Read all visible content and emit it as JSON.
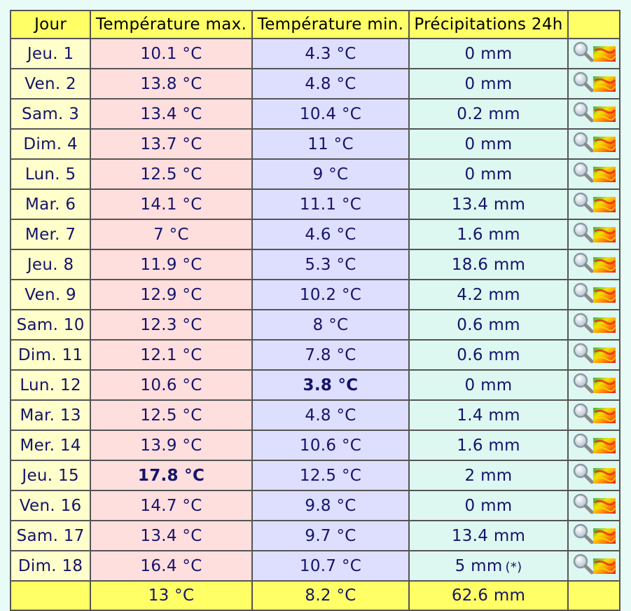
{
  "headers": {
    "day": "Jour",
    "tmax": "Température max.",
    "tmin": "Température min.",
    "prec": "Précipitations 24h",
    "icon": ""
  },
  "rows": [
    {
      "day": "Jeu. 1",
      "tmax": "10.1 °C",
      "tmin": "4.3 °C",
      "prec": "0 mm"
    },
    {
      "day": "Ven. 2",
      "tmax": "13.8 °C",
      "tmin": "4.8 °C",
      "prec": "0 mm"
    },
    {
      "day": "Sam. 3",
      "tmax": "13.4 °C",
      "tmin": "10.4 °C",
      "prec": "0.2 mm"
    },
    {
      "day": "Dim. 4",
      "tmax": "13.7 °C",
      "tmin": "11 °C",
      "prec": "0 mm"
    },
    {
      "day": "Lun. 5",
      "tmax": "12.5 °C",
      "tmin": "9 °C",
      "prec": "0 mm"
    },
    {
      "day": "Mar. 6",
      "tmax": "14.1 °C",
      "tmin": "11.1 °C",
      "prec": "13.4 mm"
    },
    {
      "day": "Mer. 7",
      "tmax": "7 °C",
      "tmin": "4.6 °C",
      "prec": "1.6 mm"
    },
    {
      "day": "Jeu. 8",
      "tmax": "11.9 °C",
      "tmin": "5.3 °C",
      "prec": "18.6 mm"
    },
    {
      "day": "Ven. 9",
      "tmax": "12.9 °C",
      "tmin": "10.2 °C",
      "prec": "4.2 mm"
    },
    {
      "day": "Sam. 10",
      "tmax": "12.3 °C",
      "tmin": "8 °C",
      "prec": "0.6 mm"
    },
    {
      "day": "Dim. 11",
      "tmax": "12.1 °C",
      "tmin": "7.8 °C",
      "prec": "0.6 mm"
    },
    {
      "day": "Lun. 12",
      "tmax": "10.6 °C",
      "tmin": "3.8 °C",
      "prec": "0 mm",
      "tmin_style": "bold-black"
    },
    {
      "day": "Mar. 13",
      "tmax": "12.5 °C",
      "tmin": "4.8 °C",
      "prec": "1.4 mm"
    },
    {
      "day": "Mer. 14",
      "tmax": "13.9 °C",
      "tmin": "10.6 °C",
      "prec": "1.6 mm"
    },
    {
      "day": "Jeu. 15",
      "tmax": "17.8 °C",
      "tmin": "12.5 °C",
      "prec": "2 mm",
      "tmax_style": "bold-red"
    },
    {
      "day": "Ven. 16",
      "tmax": "14.7 °C",
      "tmin": "9.8 °C",
      "prec": "0 mm"
    },
    {
      "day": "Sam. 17",
      "tmax": "13.4 °C",
      "tmin": "9.7 °C",
      "prec": "13.4 mm"
    },
    {
      "day": "Dim. 18",
      "tmax": "16.4 °C",
      "tmin": "10.7 °C",
      "prec": "5 mm",
      "prec_note": "(*)"
    }
  ],
  "totals": {
    "day": "",
    "tmax": "13 °C",
    "tmin": "8.2 °C",
    "prec": "62.6 mm"
  },
  "icons": {
    "zoom": "magnifier-icon",
    "map": "heatmap-icon"
  },
  "colors": {
    "header_bg": "#ffff66",
    "day_bg": "#ffffcc",
    "tmax_bg": "#ffdede",
    "tmin_bg": "#dedeff",
    "prec_bg": "#ddf7f1",
    "record_high": "#a00000",
    "text": "#14146a"
  }
}
